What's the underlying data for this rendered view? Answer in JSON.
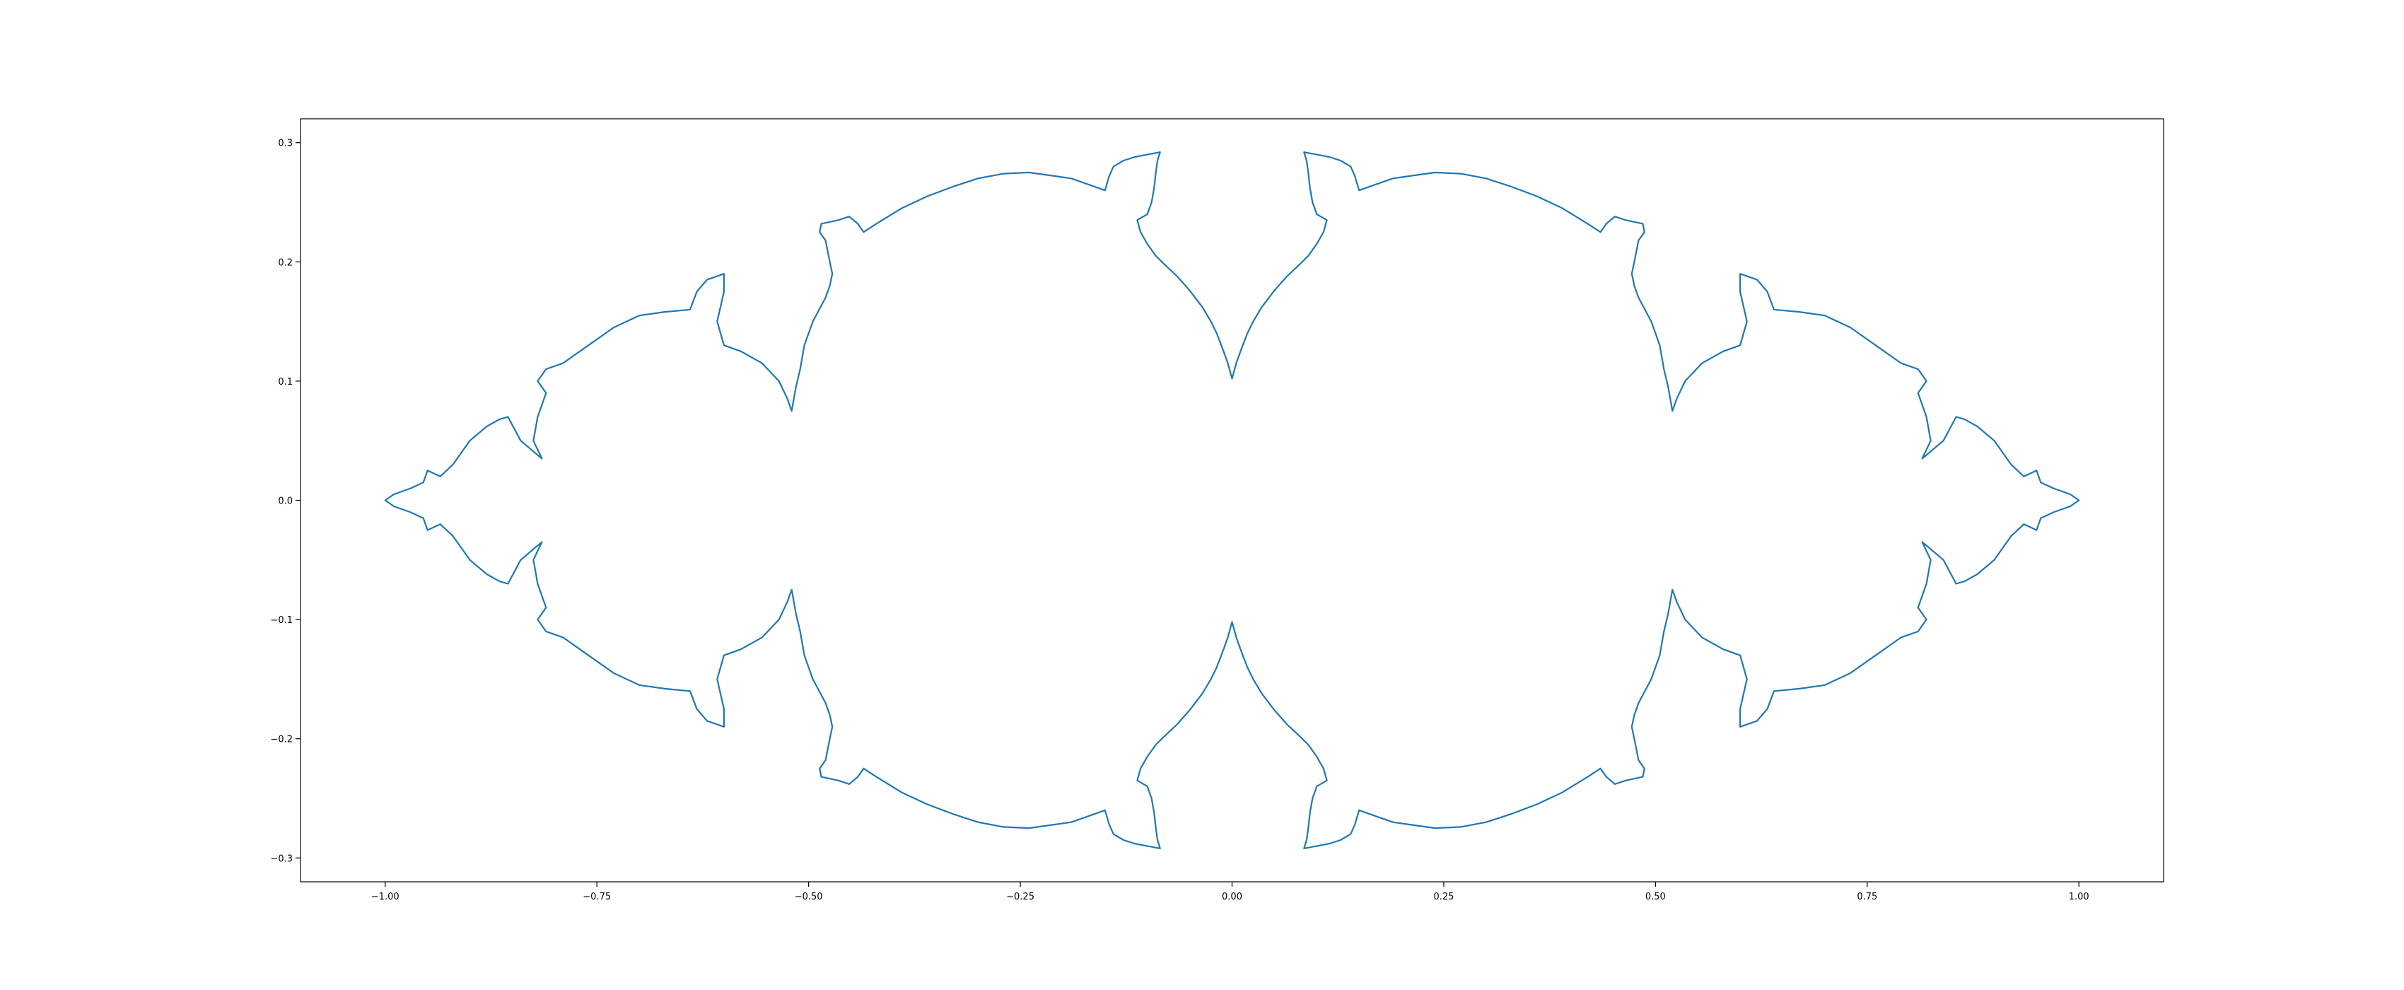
{
  "chart_data": {
    "type": "line",
    "title": "",
    "xlabel": "",
    "ylabel": "",
    "xlim": [
      -1.1,
      1.1
    ],
    "ylim": [
      -0.32,
      0.32
    ],
    "x_ticks": [
      -1.0,
      -0.75,
      -0.5,
      -0.25,
      0.0,
      0.25,
      0.5,
      0.75,
      1.0
    ],
    "x_tick_labels": [
      "−1.00",
      "−0.75",
      "−0.50",
      "−0.25",
      "0.00",
      "0.25",
      "0.50",
      "0.75",
      "1.00"
    ],
    "y_ticks": [
      -0.3,
      -0.2,
      -0.1,
      0.0,
      0.1,
      0.2,
      0.3
    ],
    "y_tick_labels": [
      "−0.3",
      "−0.2",
      "−0.1",
      "0.0",
      "0.1",
      "0.2",
      "0.3"
    ],
    "grid": false,
    "legend": "none",
    "series": [
      {
        "color": "#1f77b4",
        "points_upper_right": [
          [
            0.0,
            0.102
          ],
          [
            0.005,
            0.115
          ],
          [
            0.01,
            0.125
          ],
          [
            0.018,
            0.14
          ],
          [
            0.025,
            0.15
          ],
          [
            0.035,
            0.162
          ],
          [
            0.05,
            0.176
          ],
          [
            0.065,
            0.188
          ],
          [
            0.08,
            0.198
          ],
          [
            0.09,
            0.205
          ],
          [
            0.1,
            0.215
          ],
          [
            0.108,
            0.225
          ],
          [
            0.112,
            0.235
          ],
          [
            0.1,
            0.24
          ],
          [
            0.095,
            0.25
          ],
          [
            0.092,
            0.262
          ],
          [
            0.09,
            0.275
          ],
          [
            0.088,
            0.285
          ],
          [
            0.085,
            0.292
          ],
          [
            0.1,
            0.29
          ],
          [
            0.115,
            0.288
          ],
          [
            0.128,
            0.285
          ],
          [
            0.14,
            0.28
          ],
          [
            0.145,
            0.272
          ],
          [
            0.15,
            0.26
          ],
          [
            0.17,
            0.265
          ],
          [
            0.19,
            0.27
          ],
          [
            0.21,
            0.272
          ],
          [
            0.24,
            0.275
          ],
          [
            0.27,
            0.274
          ],
          [
            0.3,
            0.27
          ],
          [
            0.33,
            0.263
          ],
          [
            0.36,
            0.255
          ],
          [
            0.39,
            0.245
          ],
          [
            0.42,
            0.232
          ],
          [
            0.435,
            0.225
          ],
          [
            0.442,
            0.232
          ],
          [
            0.452,
            0.238
          ],
          [
            0.465,
            0.235
          ],
          [
            0.485,
            0.232
          ],
          [
            0.487,
            0.225
          ],
          [
            0.48,
            0.218
          ],
          [
            0.475,
            0.2
          ],
          [
            0.472,
            0.19
          ],
          [
            0.475,
            0.18
          ],
          [
            0.48,
            0.17
          ],
          [
            0.495,
            0.15
          ],
          [
            0.505,
            0.13
          ],
          [
            0.51,
            0.11
          ],
          [
            0.515,
            0.095
          ],
          [
            0.52,
            0.075
          ],
          [
            0.525,
            0.085
          ],
          [
            0.535,
            0.1
          ],
          [
            0.555,
            0.115
          ],
          [
            0.58,
            0.125
          ],
          [
            0.6,
            0.13
          ],
          [
            0.608,
            0.15
          ],
          [
            0.6,
            0.175
          ],
          [
            0.6,
            0.19
          ],
          [
            0.62,
            0.185
          ],
          [
            0.632,
            0.175
          ],
          [
            0.64,
            0.16
          ],
          [
            0.67,
            0.158
          ],
          [
            0.7,
            0.155
          ],
          [
            0.73,
            0.145
          ],
          [
            0.76,
            0.13
          ],
          [
            0.79,
            0.115
          ],
          [
            0.81,
            0.11
          ],
          [
            0.82,
            0.1
          ],
          [
            0.81,
            0.09
          ],
          [
            0.82,
            0.07
          ],
          [
            0.825,
            0.05
          ],
          [
            0.815,
            0.035
          ],
          [
            0.84,
            0.05
          ],
          [
            0.855,
            0.07
          ],
          [
            0.865,
            0.068
          ],
          [
            0.88,
            0.062
          ],
          [
            0.9,
            0.05
          ],
          [
            0.92,
            0.03
          ],
          [
            0.935,
            0.02
          ],
          [
            0.95,
            0.025
          ],
          [
            0.955,
            0.015
          ],
          [
            0.97,
            0.01
          ],
          [
            0.99,
            0.005
          ],
          [
            1.0,
            0.0
          ]
        ]
      }
    ]
  }
}
